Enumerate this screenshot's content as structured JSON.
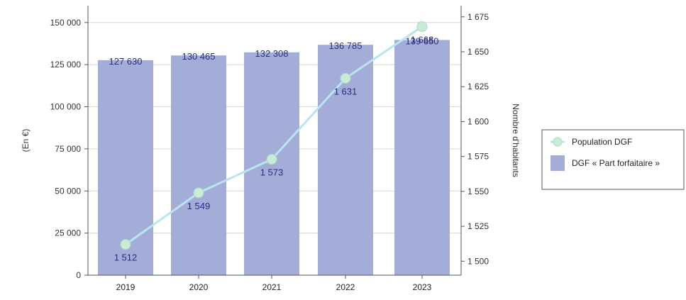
{
  "chart_data": {
    "type": "bar",
    "title": "",
    "categories": [
      "2019",
      "2020",
      "2021",
      "2022",
      "2023"
    ],
    "bar_series": {
      "name": "DGF « Part forfaitaire »",
      "values": [
        127630,
        130465,
        132308,
        136785,
        139650
      ],
      "labels": [
        "127 630",
        "130 465",
        "132 308",
        "136 785",
        "139 650"
      ],
      "axis": "left",
      "color": "#a4acd8"
    },
    "line_series": {
      "name": "Population DGF",
      "values": [
        1512,
        1549,
        1573,
        1631,
        1668
      ],
      "labels": [
        "1 512",
        "1 549",
        "1 573",
        "1 631",
        "1 668"
      ],
      "axis": "right",
      "color": "#b8e6f0",
      "marker_color": "#c9ecd6"
    },
    "y_left": {
      "label": "(En €)",
      "ylim": [
        0,
        160000
      ],
      "ticks": [
        0,
        25000,
        50000,
        75000,
        100000,
        125000,
        150000
      ],
      "tick_labels": [
        "0",
        "25 000",
        "50 000",
        "75 000",
        "100 000",
        "125 000",
        "150 000"
      ]
    },
    "y_right": {
      "label": "Nombre d'habitants",
      "ylim": [
        1490,
        1683
      ],
      "ticks": [
        1500,
        1525,
        1550,
        1575,
        1600,
        1625,
        1650,
        1675
      ],
      "tick_labels": [
        "1 500",
        "1 525",
        "1 550",
        "1 575",
        "1 600",
        "1 625",
        "1 650",
        "1 675"
      ]
    },
    "grid": true,
    "legend": {
      "position": "right",
      "items": [
        {
          "label": "Population DGF",
          "kind": "line"
        },
        {
          "label": "DGF « Part forfaitaire »",
          "kind": "bar"
        }
      ]
    }
  }
}
